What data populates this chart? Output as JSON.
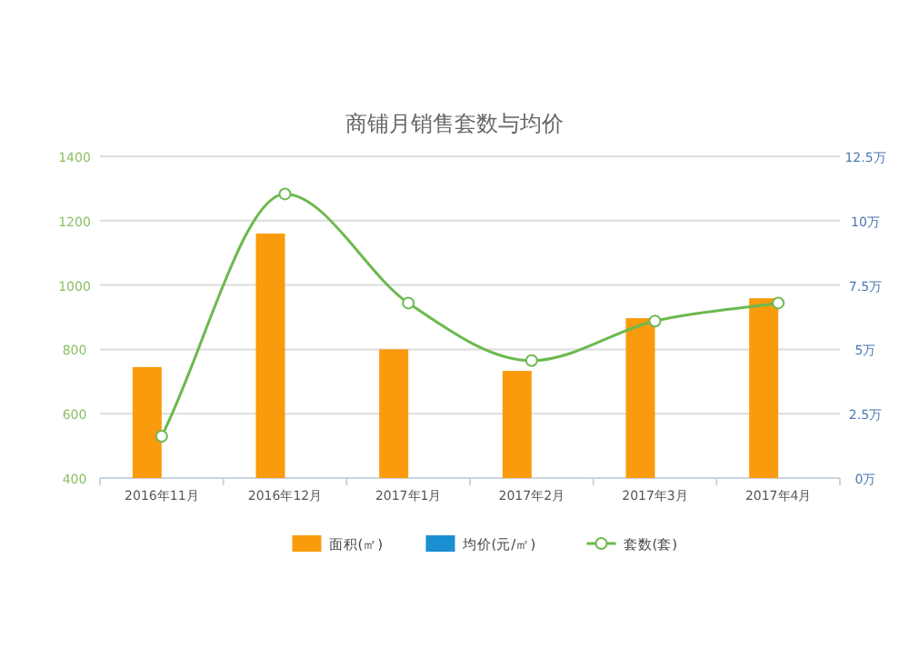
{
  "chart_data": {
    "type": "bar",
    "title": "商铺月销售套数与均价",
    "categories": [
      "2016年11月",
      "2016年12月",
      "2017年1月",
      "2017年2月",
      "2017年3月",
      "2017年4月"
    ],
    "series": [
      {
        "name": "面积(㎡)",
        "color": "#f99b0c",
        "values": [
          745,
          1160,
          800,
          733,
          897,
          959
        ]
      },
      {
        "name": "均价(元/㎡)",
        "color": "#1a8fd1",
        "values": [
          null,
          null,
          null,
          null,
          null,
          null
        ]
      },
      {
        "name": "套数(套)",
        "type": "line",
        "color": "#6db94f",
        "marker": "circle",
        "values": [
          530,
          1283,
          944,
          765,
          888,
          944
        ]
      }
    ],
    "ylim": [
      400,
      1400
    ],
    "yticks": [
      400,
      600,
      800,
      1000,
      1200,
      1400
    ],
    "y2lim": [
      0,
      12.5
    ],
    "y2ticks": [
      {
        "value": 0,
        "label": "0万"
      },
      {
        "value": 2.5,
        "label": "2.5万"
      },
      {
        "value": 5,
        "label": "5万"
      },
      {
        "value": 7.5,
        "label": "7.5万"
      },
      {
        "value": 10,
        "label": "10万"
      },
      {
        "value": 12.5,
        "label": "12.5万"
      }
    ],
    "grid": "y",
    "legend": "bottom"
  }
}
